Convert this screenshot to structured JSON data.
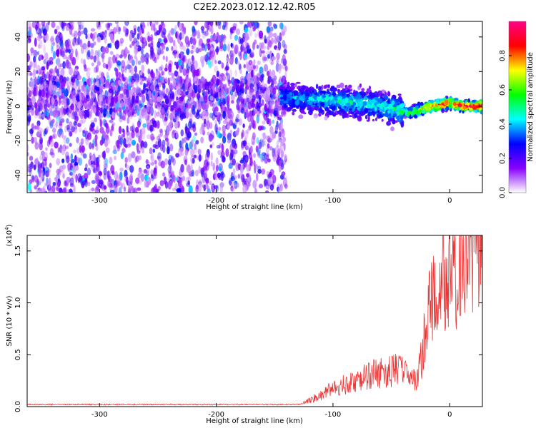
{
  "title": "C2E2.2023.012.12.42.R05",
  "chart_data": [
    {
      "type": "heatmap",
      "xlabel": "Height of straight line (km)",
      "ylabel": "Frequency (Hz)",
      "xlim": [
        -362,
        28
      ],
      "ylim": [
        -50,
        49
      ],
      "xticks": [
        -300,
        -200,
        -100,
        0
      ],
      "yticks": [
        -40,
        -20,
        0,
        20,
        40
      ],
      "colorbar": {
        "label": "Normalized spectral amplitude",
        "range": [
          0.0,
          1.0
        ],
        "ticks": [
          0.0,
          0.2,
          0.4,
          0.6,
          0.8
        ],
        "colors": [
          "#ffffff",
          "#8800ff",
          "#0000ff",
          "#00ffff",
          "#00ff00",
          "#ffff00",
          "#ff0000",
          "#ff0088"
        ]
      },
      "noise_region_x": [
        -362,
        -140
      ],
      "signal_track": {
        "x": [
          -145,
          -120,
          -100,
          -80,
          -60,
          -45,
          -35,
          -25,
          -15,
          -5,
          0,
          10,
          20,
          28
        ],
        "y": [
          5,
          4,
          3,
          2,
          0,
          -2,
          -4,
          -2,
          0,
          1,
          2,
          0,
          0,
          0
        ],
        "amplitude": [
          0.35,
          0.4,
          0.45,
          0.45,
          0.45,
          0.5,
          0.55,
          0.75,
          0.85,
          0.9,
          0.85,
          0.95,
          0.95,
          0.95
        ]
      }
    },
    {
      "type": "line",
      "xlabel": "Height of straight line (km)",
      "ylabel": "SNR (10 * v/v)",
      "y_multiplier": "(x10",
      "y_multiplier_exp": "4",
      "xlim": [
        -362,
        28
      ],
      "ylim": [
        0,
        1.65
      ],
      "xticks": [
        -300,
        -200,
        -100,
        0
      ],
      "yticks": [
        0.0,
        0.5,
        1.0,
        1.5
      ],
      "ytick_labels": [
        "0.0",
        "0.5",
        "1.0",
        "1.5"
      ],
      "line_color": "#ee3333",
      "series": [
        {
          "x": [
            -362,
            -300,
            -200,
            -130,
            -120,
            -100,
            -80,
            -60,
            -45,
            -35,
            -28,
            -22,
            -15,
            -10,
            -5,
            0,
            10,
            20,
            28
          ],
          "y": [
            0.02,
            0.02,
            0.02,
            0.02,
            0.05,
            0.15,
            0.22,
            0.28,
            0.3,
            0.25,
            0.2,
            0.55,
            0.9,
            0.75,
            1.05,
            1.05,
            1.2,
            1.45,
            1.6
          ]
        }
      ]
    }
  ]
}
